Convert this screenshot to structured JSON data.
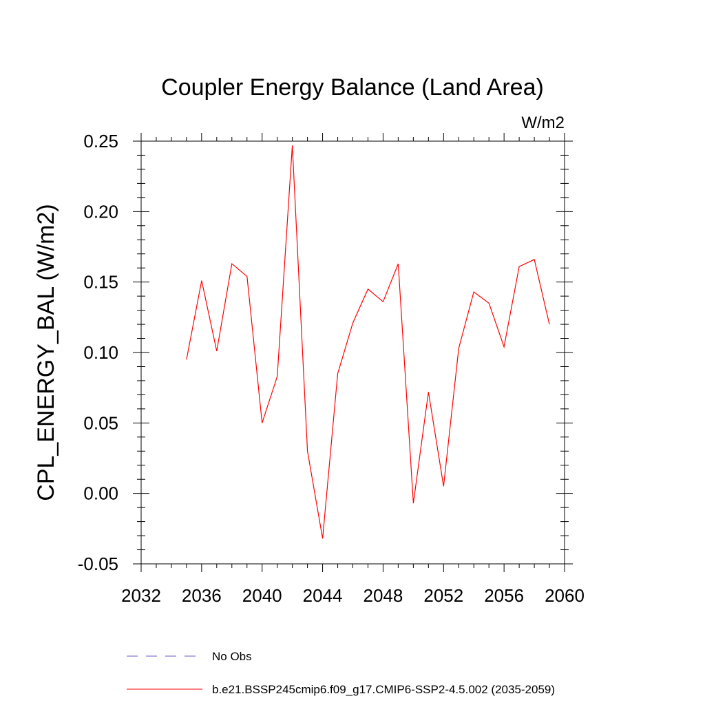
{
  "chart_data": {
    "type": "line",
    "title": "Coupler Energy Balance (Land Area)",
    "units": "W/m2",
    "xlabel": "",
    "ylabel": "CPL_ENERGY_BAL  (W/m2)",
    "xlim": [
      2032,
      2060
    ],
    "ylim": [
      -0.05,
      0.25
    ],
    "x_ticks": [
      2032,
      2036,
      2040,
      2044,
      2048,
      2052,
      2056,
      2060
    ],
    "x_tick_labels": [
      "2032",
      "2036",
      "2040",
      "2044",
      "2048",
      "2052",
      "2056",
      "2060"
    ],
    "y_ticks": [
      -0.05,
      0.0,
      0.05,
      0.1,
      0.15,
      0.2,
      0.25
    ],
    "y_tick_labels": [
      "-0.05",
      "0.00",
      "0.05",
      "0.10",
      "0.15",
      "0.20",
      "0.25"
    ],
    "grid": false,
    "legend_position": "bottom",
    "series": [
      {
        "name": "b.e21.BSSP245cmip6.f09_g17.CMIP6-SSP2-4.5.002 (2035-2059)",
        "color": "#ff0000",
        "style": "solid",
        "x": [
          2035,
          2036,
          2037,
          2038,
          2039,
          2040,
          2041,
          2042,
          2043,
          2044,
          2045,
          2046,
          2047,
          2048,
          2049,
          2050,
          2051,
          2052,
          2053,
          2054,
          2055,
          2056,
          2057,
          2058,
          2059
        ],
        "values": [
          0.095,
          0.151,
          0.101,
          0.163,
          0.154,
          0.05,
          0.083,
          0.247,
          0.03,
          -0.032,
          0.085,
          0.121,
          0.145,
          0.136,
          0.163,
          -0.007,
          0.072,
          0.005,
          0.103,
          0.143,
          0.135,
          0.104,
          0.161,
          0.166,
          0.12
        ]
      }
    ],
    "legend": [
      {
        "label": "No Obs",
        "color": "#6a5acd",
        "style": "dashed"
      },
      {
        "label": "b.e21.BSSP245cmip6.f09_g17.CMIP6-SSP2-4.5.002 (2035-2059)",
        "color": "#ff0000",
        "style": "solid"
      }
    ]
  }
}
